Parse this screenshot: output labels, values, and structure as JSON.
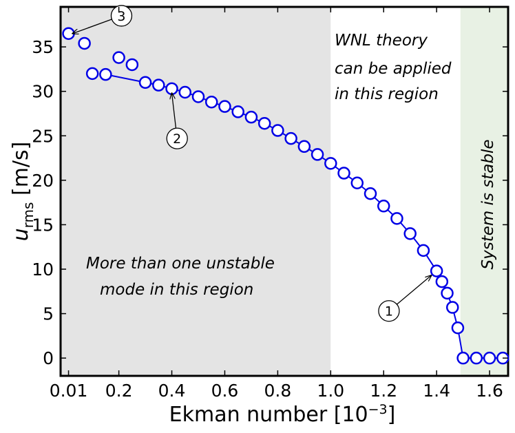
{
  "chart_data": {
    "type": "scatter",
    "xlabel_base": "Ekman number [10",
    "xlabel_exp": "−3",
    "xlabel_close": "]",
    "ylabel_main": "u",
    "ylabel_sub": "rms",
    "ylabel_units": " [m/s]",
    "xlim": [
      -0.02,
      1.67
    ],
    "ylim": [
      -2,
      39.5
    ],
    "x_ticks": [
      {
        "value": 0.01,
        "label": "0.01"
      },
      {
        "value": 0.2,
        "label": "0.2"
      },
      {
        "value": 0.4,
        "label": "0.4"
      },
      {
        "value": 0.6,
        "label": "0.6"
      },
      {
        "value": 0.8,
        "label": "0.8"
      },
      {
        "value": 1.0,
        "label": "1.0"
      },
      {
        "value": 1.2,
        "label": "1.2"
      },
      {
        "value": 1.4,
        "label": "1.4"
      },
      {
        "value": 1.6,
        "label": "1.6"
      }
    ],
    "y_ticks": [
      {
        "value": 0,
        "label": "0"
      },
      {
        "value": 5,
        "label": "5"
      },
      {
        "value": 10,
        "label": "10"
      },
      {
        "value": 15,
        "label": "15"
      },
      {
        "value": 20,
        "label": "20"
      },
      {
        "value": 25,
        "label": "25"
      },
      {
        "value": 30,
        "label": "30"
      },
      {
        "value": 35,
        "label": "35"
      }
    ],
    "regions": [
      {
        "x0": -0.02,
        "x1": 1.0,
        "color": "#e4e4e4",
        "lines": [
          "More than one unstable",
          "mode in this region"
        ]
      },
      {
        "x0": 1.0,
        "x1": 1.49,
        "color": "#ffffff",
        "lines": [
          "WNL theory",
          "can be applied",
          "in this region"
        ]
      },
      {
        "x0": 1.49,
        "x1": 1.67,
        "color": "#e8f1e4",
        "lines": [
          "System is stable"
        ]
      }
    ],
    "line_series": {
      "x": [
        0.15,
        0.3,
        0.35,
        0.4,
        0.45,
        0.5,
        0.55,
        0.6,
        0.65,
        0.7,
        0.75,
        0.8,
        0.85,
        0.9,
        0.95,
        1.0,
        1.05,
        1.1,
        1.15,
        1.2,
        1.25,
        1.3,
        1.35,
        1.4,
        1.42,
        1.44,
        1.46,
        1.48,
        1.5,
        1.55,
        1.6,
        1.65
      ],
      "y": [
        31.9,
        31.0,
        30.7,
        30.3,
        29.9,
        29.4,
        28.8,
        28.3,
        27.7,
        27.1,
        26.4,
        25.6,
        24.7,
        23.8,
        22.9,
        21.9,
        20.8,
        19.7,
        18.5,
        17.1,
        15.7,
        14.0,
        12.1,
        9.8,
        8.6,
        7.3,
        5.7,
        3.4,
        0.0,
        0.0,
        0.0,
        0.0
      ]
    },
    "extra_points": {
      "x": [
        0.01,
        0.07,
        0.1,
        0.2,
        0.25
      ],
      "y": [
        36.5,
        35.4,
        32.0,
        33.8,
        33.0
      ]
    },
    "marker_color": "#0000e6",
    "annotations": [
      {
        "label": "1",
        "target": [
          1.38,
          9.3
        ],
        "circle": [
          1.22,
          5.3
        ]
      },
      {
        "label": "2",
        "target": [
          0.4,
          29.8
        ],
        "circle": [
          0.42,
          24.7
        ]
      },
      {
        "label": "3",
        "target": [
          0.025,
          36.5
        ],
        "circle": [
          0.21,
          38.5
        ]
      }
    ]
  }
}
